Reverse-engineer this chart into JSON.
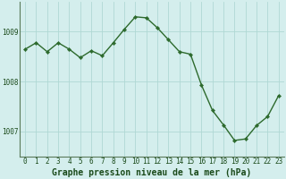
{
  "x": [
    0,
    1,
    2,
    3,
    4,
    5,
    6,
    7,
    8,
    9,
    10,
    11,
    12,
    13,
    14,
    15,
    16,
    17,
    18,
    19,
    20,
    21,
    22,
    23
  ],
  "y": [
    1008.65,
    1008.78,
    1008.6,
    1008.78,
    1008.65,
    1008.48,
    1008.62,
    1008.52,
    1008.78,
    1009.05,
    1009.3,
    1009.28,
    1009.08,
    1008.84,
    1008.6,
    1008.55,
    1007.93,
    1007.42,
    1007.13,
    1006.82,
    1006.85,
    1007.12,
    1007.3,
    1007.72
  ],
  "line_color": "#2d6a2d",
  "marker_color": "#2d6a2d",
  "bg_color": "#d4eeed",
  "grid_color": "#b0d8d4",
  "axis_color": "#5a7a5a",
  "text_color": "#1a4a1a",
  "xlabel": "Graphe pression niveau de la mer (hPa)",
  "ylim": [
    1006.5,
    1009.6
  ],
  "yticks": [
    1007,
    1008,
    1009
  ],
  "xtick_labels": [
    "0",
    "1",
    "2",
    "3",
    "4",
    "5",
    "6",
    "7",
    "8",
    "9",
    "10",
    "11",
    "12",
    "13",
    "14",
    "15",
    "16",
    "17",
    "18",
    "19",
    "20",
    "21",
    "22",
    "23"
  ],
  "xlabel_fontsize": 7,
  "tick_fontsize": 5.5,
  "linewidth": 1.0,
  "markersize": 2.2
}
